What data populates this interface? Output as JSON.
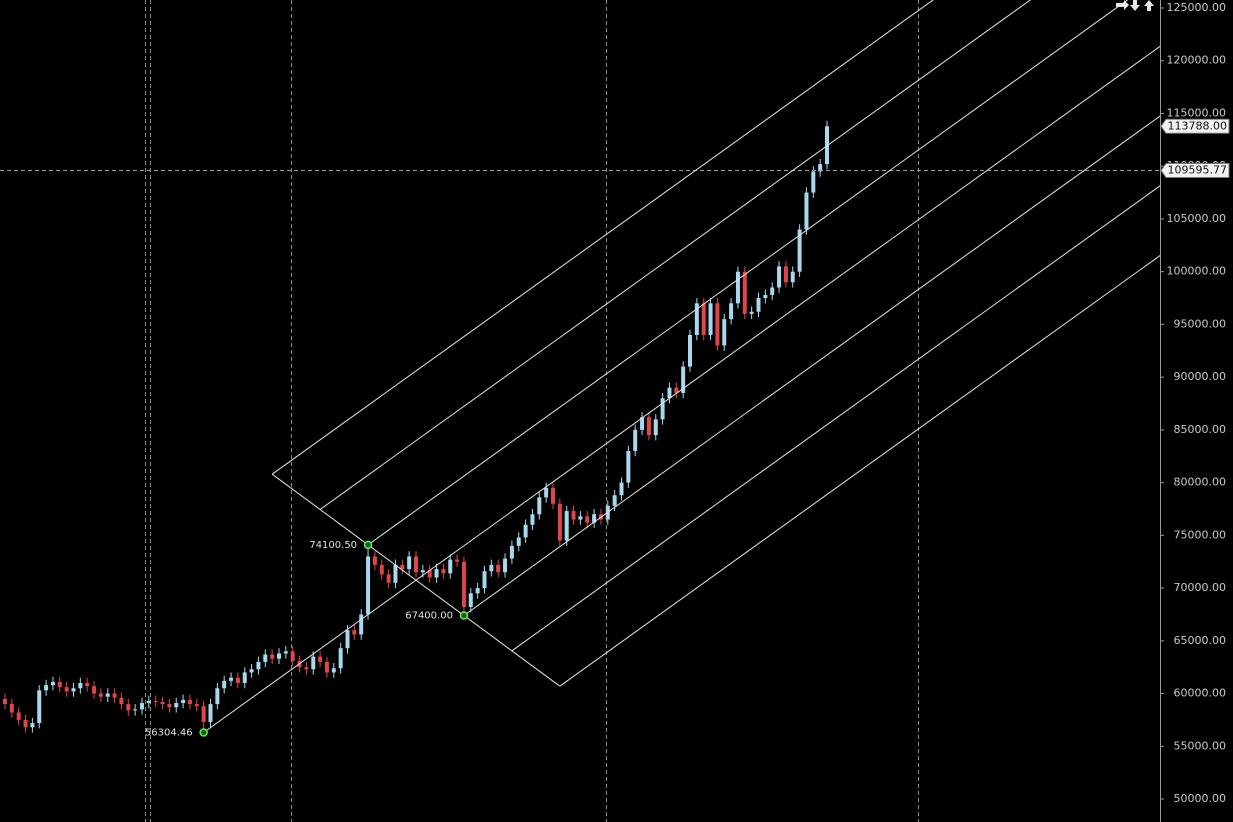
{
  "chart_data": {
    "type": "candlestick",
    "up_color": "#a9d8ee",
    "down_color": "#e0454c",
    "ylim": [
      47820,
      125760
    ],
    "yticks": [
      {
        "value": 50000,
        "label": "50000.00"
      },
      {
        "value": 55000,
        "label": "55000.00"
      },
      {
        "value": 60000,
        "label": "60000.00"
      },
      {
        "value": 65000,
        "label": "65000.00"
      },
      {
        "value": 70000,
        "label": "70000.00"
      },
      {
        "value": 75000,
        "label": "75000.00"
      },
      {
        "value": 80000,
        "label": "80000.00"
      },
      {
        "value": 85000,
        "label": "85000.00"
      },
      {
        "value": 90000,
        "label": "90000.00"
      },
      {
        "value": 95000,
        "label": "95000.00"
      },
      {
        "value": 100000,
        "label": "100000.00"
      },
      {
        "value": 105000,
        "label": "105000.00"
      },
      {
        "value": 110000,
        "label": "110000.00"
      },
      {
        "value": 115000,
        "label": "115000.00"
      },
      {
        "value": 120000,
        "label": "120000.00"
      },
      {
        "value": 125000,
        "label": "125000.00"
      }
    ],
    "open": [
      59500,
      59000,
      58200,
      57500,
      56800,
      57200,
      60300,
      60800,
      61100,
      60600,
      60200,
      60500,
      61000,
      60700,
      60000,
      59700,
      60000,
      59600,
      59000,
      58400,
      58500,
      59100,
      59300,
      59200,
      59000,
      58700,
      59100,
      59400,
      59000,
      58800,
      57300,
      59000,
      60500,
      61200,
      61500,
      61000,
      62000,
      62300,
      63000,
      63700,
      63300,
      63800,
      64000,
      63100,
      62500,
      62300,
      63500,
      63000,
      62000,
      62400,
      64300,
      66000,
      65600,
      67500,
      73000,
      72200,
      71300,
      70500,
      72200,
      71800,
      73000,
      71500,
      71700,
      71000,
      71800,
      71400,
      72700,
      72500,
      68200,
      69500,
      70000,
      71600,
      72200,
      71500,
      72800,
      74000,
      74800,
      76000,
      77000,
      78600,
      79500,
      78000,
      74500,
      77300,
      76500,
      76800,
      76200,
      77000,
      76500,
      77800,
      78800,
      80000,
      83000,
      85000,
      86200,
      84500,
      86000,
      88000,
      89000,
      88500,
      91000,
      94000,
      97000,
      94000,
      97000,
      93000,
      95500,
      97000,
      100000,
      96000,
      96200,
      97500,
      97800,
      98500,
      100500,
      99000,
      100000,
      104000,
      107500,
      109500,
      110200
    ],
    "high": [
      60000,
      59500,
      58700,
      58000,
      57700,
      60800,
      61300,
      61600,
      61600,
      61100,
      61000,
      61500,
      61500,
      61200,
      60500,
      60500,
      60500,
      60100,
      59500,
      59000,
      59600,
      59800,
      59800,
      59700,
      59500,
      59600,
      59900,
      59900,
      59500,
      59300,
      59500,
      61000,
      61700,
      62000,
      62000,
      62500,
      62800,
      63500,
      64200,
      64200,
      64300,
      64500,
      64500,
      63600,
      63000,
      64000,
      64000,
      63500,
      62900,
      64800,
      66500,
      66500,
      68000,
      74100.5,
      73500,
      72700,
      71800,
      72700,
      72700,
      73500,
      73500,
      72200,
      72200,
      72300,
      72300,
      73200,
      73200,
      73000,
      70000,
      70500,
      72100,
      72700,
      72700,
      73300,
      74500,
      75300,
      76500,
      77500,
      79100,
      80000,
      80000,
      78500,
      77800,
      77800,
      77300,
      77300,
      77500,
      77500,
      78300,
      79300,
      80500,
      83500,
      85500,
      86700,
      86700,
      86500,
      88500,
      89500,
      89500,
      91500,
      94500,
      97500,
      97500,
      97500,
      97500,
      96000,
      97500,
      100500,
      100500,
      96700,
      98000,
      98300,
      99000,
      101000,
      101000,
      100500,
      104500,
      108000,
      110000,
      110700,
      114300
    ],
    "low": [
      58500,
      57700,
      57000,
      56300,
      56300,
      56700,
      59800,
      60300,
      60100,
      59700,
      59700,
      60000,
      60200,
      59500,
      59200,
      59200,
      59100,
      58500,
      57900,
      57900,
      58000,
      58600,
      58700,
      58500,
      58200,
      58200,
      58600,
      58500,
      58300,
      56304.46,
      56800,
      58500,
      60000,
      60700,
      60500,
      60500,
      61500,
      61800,
      62500,
      62800,
      62800,
      63300,
      62600,
      62000,
      61800,
      61800,
      62500,
      61500,
      61500,
      61900,
      63800,
      65100,
      65100,
      67000,
      71700,
      70800,
      70000,
      70000,
      71300,
      71300,
      71000,
      71000,
      70500,
      70500,
      70900,
      70900,
      72000,
      67400,
      67700,
      69000,
      69500,
      71100,
      71000,
      71000,
      72300,
      73500,
      74300,
      75500,
      76500,
      78100,
      77500,
      74000,
      74000,
      76000,
      76000,
      75700,
      75700,
      76000,
      76000,
      77300,
      78300,
      79500,
      82500,
      84500,
      84000,
      84000,
      85500,
      87500,
      88000,
      88000,
      90500,
      93500,
      93500,
      93500,
      92500,
      92500,
      95000,
      96500,
      95500,
      95500,
      95700,
      97000,
      97300,
      98000,
      98500,
      98500,
      99500,
      103500,
      107000,
      109000,
      109700
    ],
    "close": [
      59000,
      58200,
      57500,
      56800,
      57200,
      60300,
      60800,
      61100,
      60600,
      60200,
      60500,
      61000,
      60700,
      60000,
      59700,
      60000,
      59600,
      59000,
      58400,
      58500,
      59100,
      59300,
      59200,
      59000,
      58700,
      59100,
      59400,
      59000,
      58800,
      57300,
      59000,
      60500,
      61200,
      61500,
      61000,
      62000,
      62300,
      63000,
      63700,
      63300,
      63800,
      64000,
      63100,
      62500,
      62300,
      63500,
      63000,
      62000,
      62400,
      64300,
      66000,
      65600,
      67500,
      73000,
      72200,
      71300,
      70500,
      72200,
      71800,
      73000,
      71500,
      71700,
      71000,
      71800,
      71400,
      72700,
      72500,
      68200,
      69500,
      70000,
      71600,
      72200,
      71500,
      72800,
      74000,
      74800,
      76000,
      77000,
      78600,
      79500,
      78000,
      74500,
      77300,
      76500,
      76800,
      76200,
      77000,
      76500,
      77800,
      78800,
      80000,
      83000,
      85000,
      86200,
      84500,
      86000,
      88000,
      89000,
      88500,
      91000,
      94000,
      97000,
      94000,
      97000,
      93000,
      95500,
      97000,
      100000,
      96000,
      96200,
      97500,
      97800,
      98500,
      100500,
      99000,
      100000,
      104000,
      107500,
      109500,
      110200,
      113788
    ],
    "pivots": [
      {
        "value": 56304.46,
        "label": "56304.46"
      },
      {
        "value": 74100.5,
        "label": "74100.50"
      },
      {
        "value": 67400,
        "label": "67400.00"
      }
    ],
    "last_price": {
      "value": 113788,
      "label": "113788.00"
    },
    "crosshair": {
      "value": 109595.77,
      "label": "109595.77"
    }
  }
}
